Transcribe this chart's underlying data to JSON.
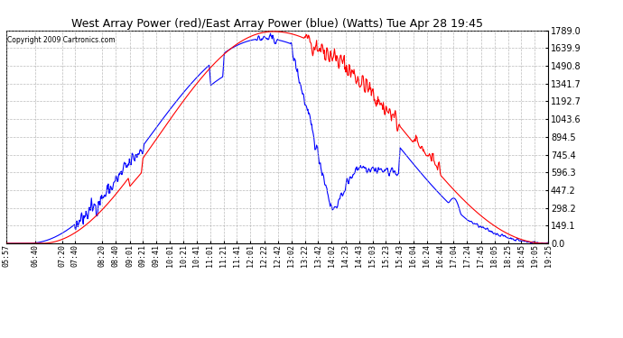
{
  "title": "West Array Power (red)/East Array Power (blue) (Watts) Tue Apr 28 19:45",
  "copyright": "Copyright 2009 Cartronics.com",
  "ylabel_values": [
    0.0,
    149.1,
    298.2,
    447.2,
    596.3,
    745.4,
    894.5,
    1043.6,
    1192.7,
    1341.7,
    1490.8,
    1639.9,
    1789.0
  ],
  "x_labels": [
    "05:57",
    "06:40",
    "07:20",
    "07:40",
    "08:20",
    "08:40",
    "09:01",
    "09:21",
    "09:41",
    "10:01",
    "10:21",
    "10:41",
    "11:01",
    "11:21",
    "11:41",
    "12:01",
    "12:22",
    "12:42",
    "13:02",
    "13:22",
    "13:42",
    "14:02",
    "14:23",
    "14:43",
    "15:03",
    "15:23",
    "15:43",
    "16:04",
    "16:24",
    "16:44",
    "17:04",
    "17:24",
    "17:45",
    "18:05",
    "18:25",
    "18:45",
    "19:05",
    "19:25"
  ],
  "red_color": "#ff0000",
  "blue_color": "#0000ff",
  "bg_color": "#ffffff",
  "plot_bg": "#ffffff",
  "grid_color": "#aaaaaa",
  "title_color": "#000000",
  "figsize": [
    6.9,
    3.75
  ],
  "dpi": 100,
  "ymax": 1789.0,
  "ymin": 0.0
}
